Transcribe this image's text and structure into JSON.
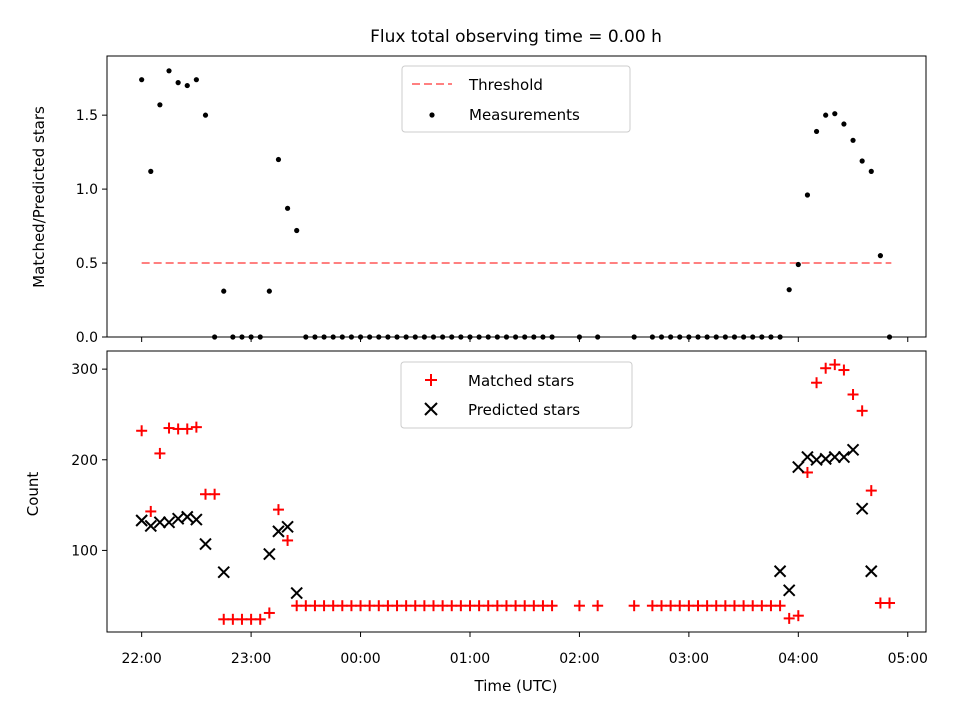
{
  "chart_data": [
    {
      "type": "scatter",
      "title": "Flux total observing time = 0.00 h",
      "ylabel": "Matched/Predicted stars",
      "xlabel": "",
      "xlim": [
        "21:41",
        "05:10"
      ],
      "ylim": [
        0,
        1.9
      ],
      "y_ticks": [
        0.0,
        0.5,
        1.0,
        1.5
      ],
      "y_tick_labels": [
        "0.0",
        "0.5",
        "1.0",
        "1.5"
      ],
      "grid": false,
      "legend_position": "upper center",
      "threshold": {
        "name": "Threshold",
        "value": 0.5,
        "x_range": [
          "22:00",
          "04:51"
        ],
        "color": "#ff8080",
        "dash": "dashed"
      },
      "series": [
        {
          "name": "Measurements",
          "marker": "dot",
          "color": "#000000",
          "x": [
            "22:00",
            "22:05",
            "22:10",
            "22:15",
            "22:20",
            "22:25",
            "22:30",
            "22:35",
            "22:40",
            "22:45",
            "22:50",
            "22:55",
            "23:00",
            "23:05",
            "23:10",
            "23:15",
            "23:20",
            "23:25",
            "23:30",
            "23:35",
            "23:40",
            "23:45",
            "23:50",
            "23:55",
            "00:00",
            "00:05",
            "00:10",
            "00:15",
            "00:20",
            "00:25",
            "00:30",
            "00:35",
            "00:40",
            "00:45",
            "00:50",
            "00:55",
            "01:00",
            "01:05",
            "01:10",
            "01:15",
            "01:20",
            "01:25",
            "01:30",
            "01:35",
            "01:40",
            "01:45",
            "02:00",
            "02:10",
            "02:30",
            "02:40",
            "02:45",
            "02:50",
            "02:55",
            "03:00",
            "03:05",
            "03:10",
            "03:15",
            "03:20",
            "03:25",
            "03:30",
            "03:35",
            "03:40",
            "03:45",
            "03:50",
            "03:55",
            "04:00",
            "04:05",
            "04:10",
            "04:15",
            "04:20",
            "04:25",
            "04:30",
            "04:35",
            "04:40",
            "04:45",
            "04:50"
          ],
          "y": [
            1.74,
            1.12,
            1.57,
            1.8,
            1.72,
            1.7,
            1.74,
            1.5,
            0.0,
            0.31,
            0.0,
            0.0,
            0.0,
            0.0,
            0.31,
            1.2,
            0.87,
            0.72,
            0.0,
            0.0,
            0.0,
            0.0,
            0.0,
            0.0,
            0.0,
            0.0,
            0.0,
            0.0,
            0.0,
            0.0,
            0.0,
            0.0,
            0.0,
            0.0,
            0.0,
            0.0,
            0.0,
            0.0,
            0.0,
            0.0,
            0.0,
            0.0,
            0.0,
            0.0,
            0.0,
            0.0,
            0.0,
            0.0,
            0.0,
            0.0,
            0.0,
            0.0,
            0.0,
            0.0,
            0.0,
            0.0,
            0.0,
            0.0,
            0.0,
            0.0,
            0.0,
            0.0,
            0.0,
            0.0,
            0.32,
            0.49,
            0.96,
            1.39,
            1.5,
            1.51,
            1.44,
            1.33,
            1.19,
            1.12,
            0.55,
            0.0
          ]
        }
      ]
    },
    {
      "type": "scatter",
      "title": "",
      "ylabel": "Count",
      "xlabel": "Time (UTC)",
      "xlim": [
        "21:41",
        "05:10"
      ],
      "ylim": [
        10,
        320
      ],
      "y_ticks": [
        100,
        200,
        300
      ],
      "y_tick_labels": [
        "100",
        "200",
        "300"
      ],
      "x_ticks": [
        "22:00",
        "23:00",
        "00:00",
        "01:00",
        "02:00",
        "03:00",
        "04:00",
        "05:00"
      ],
      "x_tick_labels": [
        "22:00",
        "23:00",
        "00:00",
        "01:00",
        "02:00",
        "03:00",
        "04:00",
        "05:00"
      ],
      "grid": false,
      "legend_position": "upper center",
      "series": [
        {
          "name": "Matched stars",
          "marker": "plus",
          "color": "#ff0000",
          "x": [
            "22:00",
            "22:05",
            "22:10",
            "22:15",
            "22:20",
            "22:25",
            "22:30",
            "22:35",
            "22:40",
            "22:45",
            "22:50",
            "22:55",
            "23:00",
            "23:05",
            "23:10",
            "23:15",
            "23:20",
            "23:25",
            "23:30",
            "23:35",
            "23:40",
            "23:45",
            "23:50",
            "23:55",
            "00:00",
            "00:05",
            "00:10",
            "00:15",
            "00:20",
            "00:25",
            "00:30",
            "00:35",
            "00:40",
            "00:45",
            "00:50",
            "00:55",
            "01:00",
            "01:05",
            "01:10",
            "01:15",
            "01:20",
            "01:25",
            "01:30",
            "01:35",
            "01:40",
            "01:45",
            "02:00",
            "02:10",
            "02:30",
            "02:40",
            "02:45",
            "02:50",
            "02:55",
            "03:00",
            "03:05",
            "03:10",
            "03:15",
            "03:20",
            "03:25",
            "03:30",
            "03:35",
            "03:40",
            "03:45",
            "03:50",
            "03:55",
            "04:00",
            "04:05",
            "04:10",
            "04:15",
            "04:20",
            "04:25",
            "04:30",
            "04:35",
            "04:40",
            "04:45",
            "04:50"
          ],
          "y": [
            232,
            143,
            207,
            235,
            234,
            234,
            236,
            162,
            162,
            24,
            24,
            24,
            24,
            24,
            31,
            145,
            111,
            39,
            39,
            39,
            39,
            39,
            39,
            39,
            39,
            39,
            39,
            39,
            39,
            39,
            39,
            39,
            39,
            39,
            39,
            39,
            39,
            39,
            39,
            39,
            39,
            39,
            39,
            39,
            39,
            39,
            39,
            39,
            39,
            39,
            39,
            39,
            39,
            39,
            39,
            39,
            39,
            39,
            39,
            39,
            39,
            39,
            39,
            39,
            25,
            28,
            186,
            285,
            301,
            305,
            299,
            272,
            254,
            166,
            42,
            42
          ]
        },
        {
          "name": "Predicted stars",
          "marker": "x",
          "color": "#000000",
          "x": [
            "22:00",
            "22:05",
            "22:10",
            "22:15",
            "22:20",
            "22:25",
            "22:30",
            "22:35",
            "22:45",
            "23:10",
            "23:15",
            "23:20",
            "23:25",
            "03:50",
            "03:55",
            "04:00",
            "04:05",
            "04:10",
            "04:15",
            "04:20",
            "04:25",
            "04:30",
            "04:35",
            "04:40"
          ],
          "y": [
            133,
            127,
            131,
            131,
            135,
            137,
            134,
            107,
            76,
            96,
            121,
            126,
            53,
            77,
            56,
            192,
            203,
            200,
            201,
            203,
            203,
            211,
            146,
            77
          ]
        }
      ]
    }
  ]
}
